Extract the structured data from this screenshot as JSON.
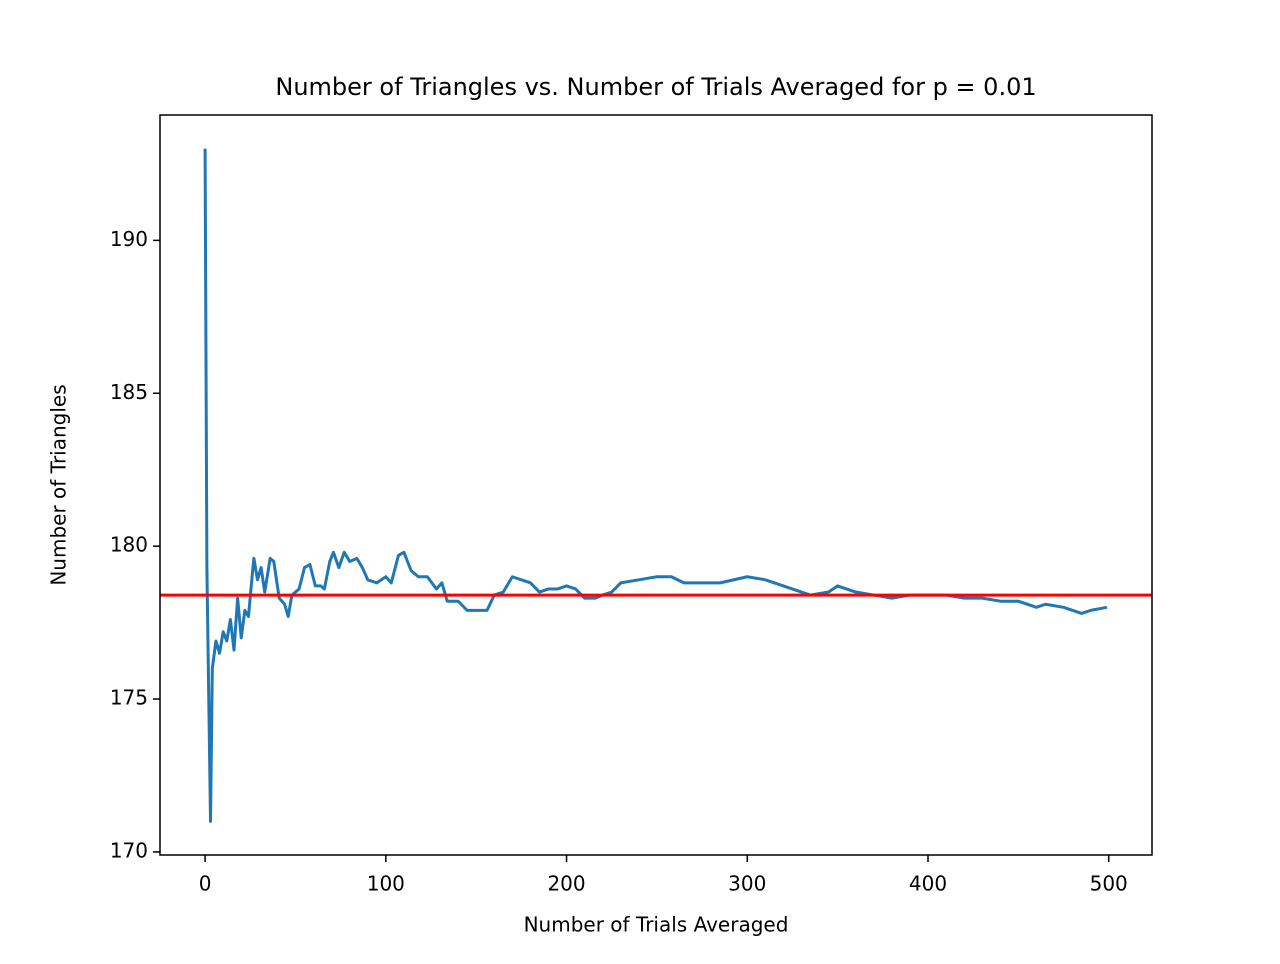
{
  "chart_data": {
    "type": "line",
    "title": "Number of Triangles vs. Number of Trials Averaged for p = 0.01",
    "x_label": "Number of Trials Averaged",
    "y_label": "Number of Triangles",
    "x": [
      0,
      1,
      3,
      4,
      6,
      8,
      10,
      12,
      14,
      16,
      18,
      20,
      22,
      24,
      26,
      27,
      29,
      31,
      33,
      36,
      38,
      41,
      44,
      46,
      48,
      52,
      55,
      58,
      61,
      64,
      66,
      69,
      71,
      74,
      77,
      80,
      84,
      87,
      90,
      95,
      100,
      103,
      107,
      110,
      114,
      118,
      123,
      128,
      131,
      134,
      140,
      145,
      150,
      156,
      160,
      165,
      170,
      175,
      180,
      185,
      190,
      195,
      200,
      205,
      210,
      216,
      220,
      225,
      230,
      240,
      250,
      258,
      265,
      275,
      285,
      300,
      310,
      320,
      330,
      335,
      345,
      350,
      360,
      370,
      380,
      390,
      400,
      410,
      420,
      430,
      440,
      450,
      460,
      465,
      475,
      485,
      490,
      499
    ],
    "series": [
      {
        "color": "#1f77b4",
        "values": [
          193,
          179.3,
          171,
          176,
          176.9,
          176.5,
          177.2,
          176.9,
          177.6,
          176.6,
          178.3,
          177.0,
          177.9,
          177.7,
          179.0,
          179.6,
          178.9,
          179.3,
          178.5,
          179.6,
          179.5,
          178.3,
          178.1,
          177.7,
          178.4,
          178.6,
          179.3,
          179.4,
          178.7,
          178.7,
          178.6,
          179.5,
          179.8,
          179.3,
          179.8,
          179.5,
          179.6,
          179.3,
          178.9,
          178.8,
          179.0,
          178.8,
          179.7,
          179.8,
          179.2,
          179.0,
          179.0,
          178.6,
          178.8,
          178.2,
          178.2,
          177.9,
          177.9,
          177.9,
          178.4,
          178.5,
          179.0,
          178.9,
          178.8,
          178.5,
          178.6,
          178.6,
          178.7,
          178.6,
          178.3,
          178.3,
          178.4,
          178.5,
          178.8,
          178.9,
          179.0,
          179.0,
          178.8,
          178.8,
          178.8,
          179.0,
          178.9,
          178.7,
          178.5,
          178.4,
          178.5,
          178.7,
          178.5,
          178.4,
          178.3,
          178.4,
          178.4,
          178.4,
          178.3,
          178.3,
          178.2,
          178.2,
          178.0,
          178.1,
          178.0,
          177.8,
          177.9,
          178.0
        ]
      }
    ],
    "hline": {
      "value": 178.4,
      "color": "#ff0000"
    },
    "xlim": [
      -24.95,
      523.95
    ],
    "ylim": [
      169.9,
      194.1
    ],
    "xticks": [
      0,
      100,
      200,
      300,
      400,
      500
    ],
    "yticks": [
      170,
      175,
      180,
      185,
      190
    ]
  }
}
